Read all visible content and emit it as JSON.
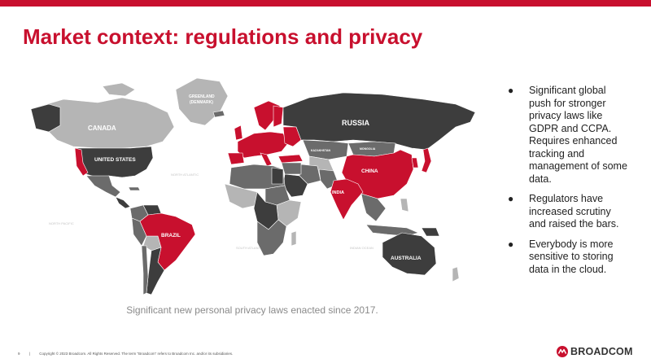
{
  "colors": {
    "accent": "#c8102e",
    "title": "#c8102e",
    "country_dark": "#3d3d3d",
    "country_mid": "#6b6b6b",
    "country_light": "#b5b5b5",
    "country_highlight": "#c8102e",
    "ocean": "#ffffff"
  },
  "slide": {
    "title": "Market context: regulations and privacy",
    "caption": "Significant new personal privacy laws enacted since 2017."
  },
  "map": {
    "labels": {
      "canada": "CANADA",
      "united_states": "UNITED STATES",
      "greenland": "GREENLAND",
      "greenland_sub": "(DENMARK)",
      "russia": "RUSSIA",
      "china": "CHINA",
      "india": "INDIA",
      "brazil": "BRAZIL",
      "australia": "AUSTRALIA",
      "kazakhstan": "KAZAKHSTAN",
      "mongolia": "MONGOLIA"
    }
  },
  "bullets": [
    {
      "icon": "bullet-dot-icon",
      "text": "Significant global push for stronger privacy laws like GDPR and CCPA. Requires enhanced tracking and management of some data."
    },
    {
      "icon": "bullet-dot-icon",
      "text": "Regulators have increased scrutiny and raised the bars."
    },
    {
      "icon": "bullet-dot-icon",
      "text": "Everybody is more sensitive to storing data in the cloud."
    }
  ],
  "footer": {
    "page_number": "9",
    "copyright": "Copyright © 2023 Broadcom. All Rights Reserved. The term \"Broadcom\" refers to Broadcom Inc. and/or its subsidiaries."
  },
  "logo": {
    "icon": "broadcom-logo-icon",
    "text": "BROADCOM"
  }
}
